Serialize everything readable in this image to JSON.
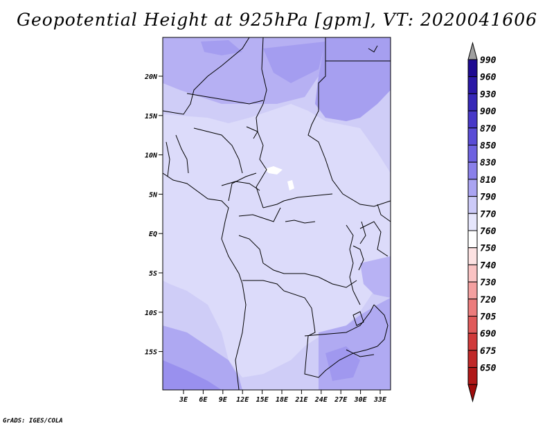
{
  "title": "Geopotential Height at 925hPa [gpm], VT: 2020041606",
  "credit": "GrADS: IGES/COLA",
  "map": {
    "lat_labels": [
      "20N",
      "15N",
      "10N",
      "5N",
      "EQ",
      "5S",
      "10S",
      "15S"
    ],
    "lon_labels": [
      "3E",
      "6E",
      "9E",
      "12E",
      "15E",
      "18E",
      "21E",
      "24E",
      "27E",
      "30E",
      "33E"
    ]
  },
  "colorbar": {
    "levels": [
      "990",
      "960",
      "930",
      "900",
      "870",
      "850",
      "830",
      "810",
      "790",
      "770",
      "760",
      "750",
      "740",
      "730",
      "720",
      "705",
      "690",
      "675",
      "650"
    ],
    "colors": [
      "#a0a0a0",
      "#1e0a91",
      "#2a18a6",
      "#3628b8",
      "#4838c8",
      "#5a4cd6",
      "#6e62e0",
      "#8a80ea",
      "#aaa4f2",
      "#cccaf8",
      "#e6e6fc",
      "#ffffff",
      "#fde2e2",
      "#fac3c3",
      "#f4a0a0",
      "#ec7c7c",
      "#e05a5a",
      "#d03a3a",
      "#c02828",
      "#b01818",
      "#a00c0c"
    ]
  }
}
